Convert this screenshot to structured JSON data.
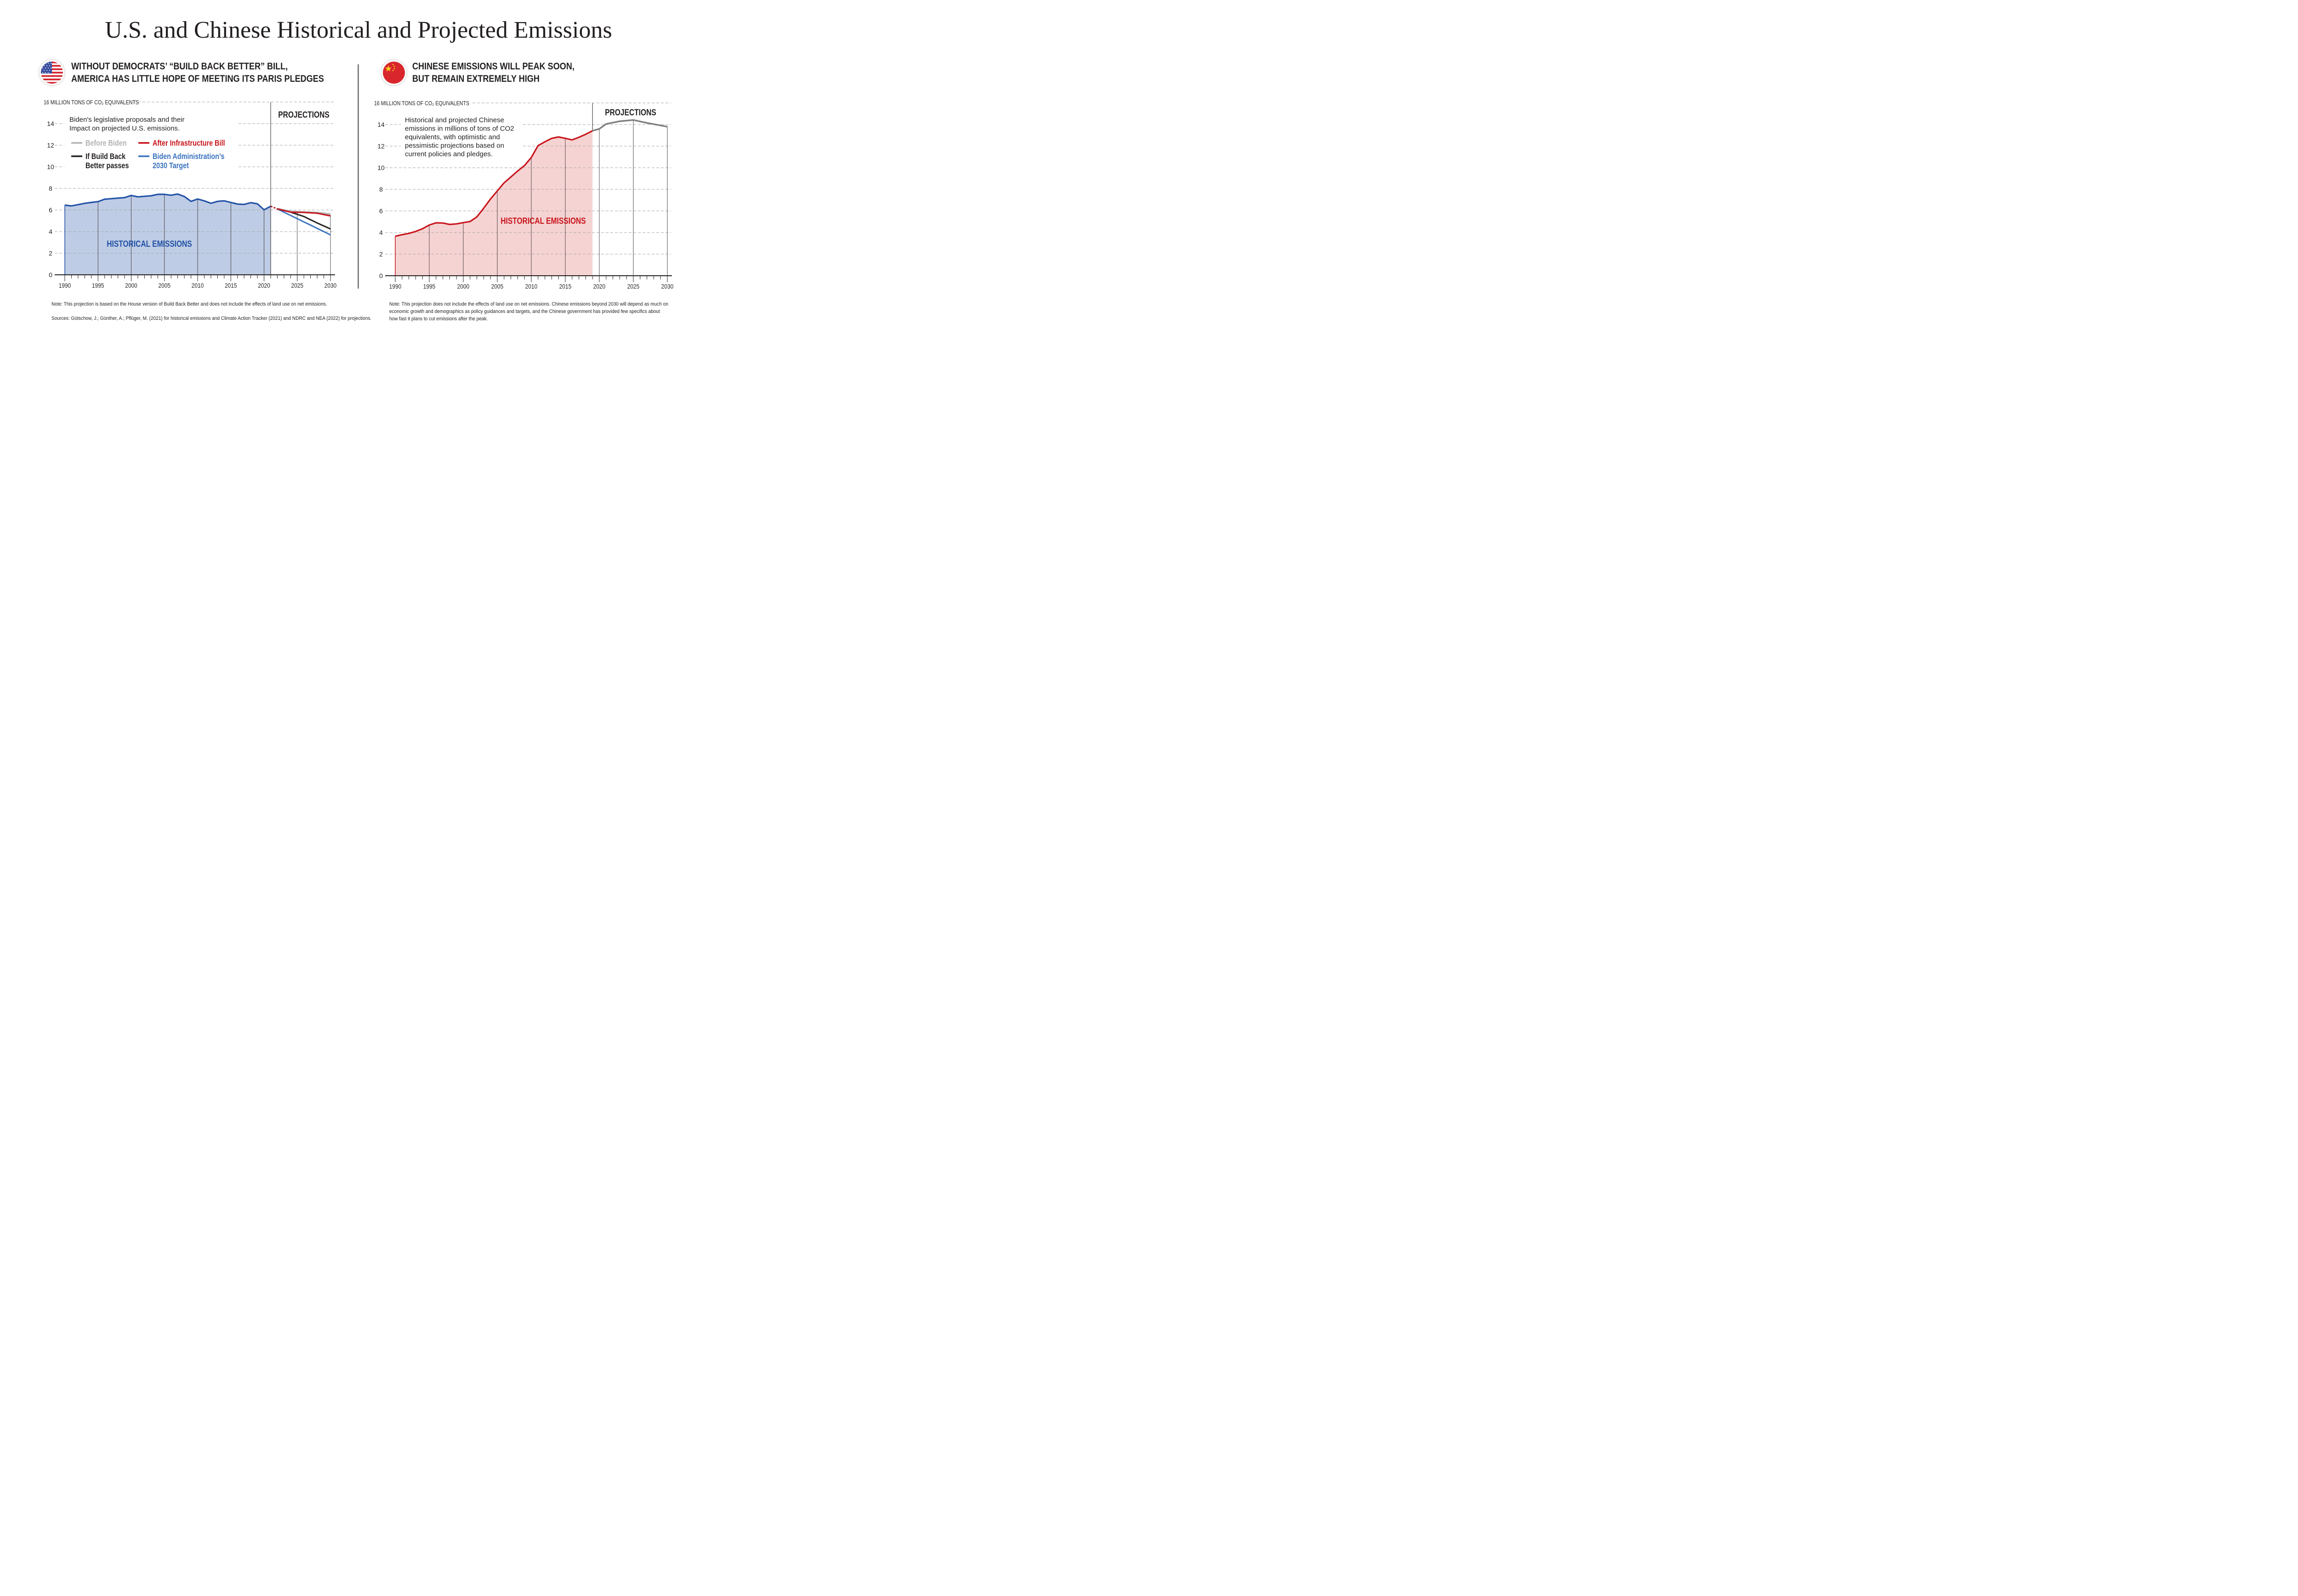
{
  "title": "U.S. and Chinese Historical and Projected Emissions",
  "colors": {
    "us_hist_line": "#2151a5",
    "us_hist_fill": "#bfcce5",
    "before_biden": "#b3b3b3",
    "after_infrastructure": "#c8141b",
    "build_back_better": "#231f20",
    "biden_target": "#3a73c0",
    "cn_hist_line": "#c8141b",
    "cn_hist_fill": "#f6d3d3",
    "cn_projection": "#808080",
    "grid": "#a6a6a6"
  },
  "us_panel": {
    "flag_icon": "us-flag-icon",
    "heading_line1": "WITHOUT DEMOCRATS’ “BUILD BACK BETTER” BILL,",
    "heading_line2": "AMERICA HAS LITTLE HOPE OF MEETING ITS PARIS PLEDGES",
    "description_line1": "Biden's legislative proposals and their",
    "description_line2": "Impact on projected U.S. emissions.",
    "note": "Note: This projection is based on the House version of Build Back Better and does not include the effects of land use on net emissions.",
    "sources": "Sources: Gütschow, J.; Günther, A.; Pflüger, M. (2021) for historical emissions and Climate Action Tracker (2021) and NDRC and NEA (2022) for projections."
  },
  "cn_panel": {
    "flag_icon": "china-flag-icon",
    "heading_line1": "CHINESE EMISSIONS WILL PEAK SOON,",
    "heading_line2": "BUT REMAIN EXTREMELY HIGH",
    "description_lines": [
      "Historical and projected Chinese",
      "emissions in millions of tons of CO2",
      "equivalents, with optimistic and",
      "pessimistic projections based on",
      "current policies and pledges."
    ],
    "note_lines": [
      "Note: This projection does not include the effects of land use on net emissions. Chinese emissions beyond 2030 will depend as much on",
      "economic growth and demographics as policy guidances and targets, and the Chinese government has provided few specifics about",
      "how fast it plans to cut emissions after the peak."
    ]
  },
  "chart_data": [
    {
      "type": "line",
      "ylabel": "16 MILLION TONS OF CO₂ EQUIVALENTS",
      "ylim": [
        0,
        16
      ],
      "yticks": [
        0,
        2,
        4,
        6,
        8,
        10,
        12,
        14,
        16
      ],
      "xlim": [
        1990,
        2030
      ],
      "xticks": [
        1990,
        1995,
        2000,
        2005,
        2010,
        2015,
        2020,
        2025,
        2030
      ],
      "grid": "horizontal dashed",
      "legend": "top-left",
      "area_label": "HISTORICAL EMISSIONS",
      "projection_label": "PROJECTIONS",
      "projection_start": 2021,
      "series": [
        {
          "name": "Historical",
          "x": [
            1990,
            1991,
            1992,
            1993,
            1994,
            1995,
            1996,
            1997,
            1998,
            1999,
            2000,
            2001,
            2002,
            2003,
            2004,
            2005,
            2006,
            2007,
            2008,
            2009,
            2010,
            2011,
            2012,
            2013,
            2014,
            2015,
            2016,
            2017,
            2018,
            2019,
            2020,
            2021
          ],
          "y": [
            6.45,
            6.38,
            6.5,
            6.62,
            6.7,
            6.78,
            7.0,
            7.05,
            7.1,
            7.15,
            7.35,
            7.22,
            7.27,
            7.32,
            7.45,
            7.45,
            7.37,
            7.48,
            7.25,
            6.8,
            7.02,
            6.85,
            6.62,
            6.8,
            6.85,
            6.7,
            6.55,
            6.52,
            6.68,
            6.58,
            6.02,
            6.35
          ]
        },
        {
          "name": "Before Biden",
          "x": [
            2021,
            2022,
            2024,
            2026,
            2028,
            2030
          ],
          "y": [
            6.35,
            6.1,
            5.85,
            5.8,
            5.75,
            5.6
          ]
        },
        {
          "name": "After Infrastructure Bill",
          "x": [
            2021,
            2022,
            2024,
            2026,
            2028,
            2030
          ],
          "y": [
            6.35,
            6.1,
            5.8,
            5.78,
            5.7,
            5.45
          ]
        },
        {
          "name": "If Build Back Better passes",
          "x": [
            2021,
            2022,
            2024,
            2026,
            2028,
            2030
          ],
          "y": [
            6.35,
            6.1,
            5.8,
            5.4,
            4.8,
            4.25
          ]
        },
        {
          "name": "Biden Administration’s 2030 Target",
          "x": [
            2021,
            2022,
            2024,
            2026,
            2028,
            2030
          ],
          "y": [
            6.35,
            6.1,
            5.5,
            4.9,
            4.3,
            3.7
          ]
        }
      ],
      "legend_entries": [
        {
          "lines": [
            "Before Biden"
          ],
          "color_key": "before_biden"
        },
        {
          "lines": [
            "After Infrastructure Bill"
          ],
          "color_key": "after_infrastructure"
        },
        {
          "lines": [
            "If Build Back",
            "Better passes"
          ],
          "color_key": "build_back_better"
        },
        {
          "lines": [
            "Biden Administration’s",
            "2030 Target"
          ],
          "color_key": "biden_target"
        }
      ]
    },
    {
      "type": "area",
      "ylabel": "16 MILLION TONS OF CO₂ EQUIVALENTS",
      "ylim": [
        0,
        16
      ],
      "yticks": [
        0,
        2,
        4,
        6,
        8,
        10,
        12,
        14,
        16
      ],
      "xlim": [
        1990,
        2030
      ],
      "xticks": [
        1990,
        1995,
        2000,
        2005,
        2010,
        2015,
        2020,
        2025,
        2030
      ],
      "grid": "horizontal dashed",
      "area_label": "HISTORICAL EMISSIONS",
      "projection_label": "PROJECTIONS",
      "projection_start": 2019,
      "series": [
        {
          "name": "Historical",
          "x": [
            1990,
            1991,
            1992,
            1993,
            1994,
            1995,
            1996,
            1997,
            1998,
            1999,
            2000,
            2001,
            2002,
            2003,
            2004,
            2005,
            2006,
            2007,
            2008,
            2009,
            2010,
            2011,
            2012,
            2013,
            2014,
            2015,
            2016,
            2017,
            2018,
            2019
          ],
          "y": [
            3.65,
            3.8,
            3.92,
            4.1,
            4.35,
            4.7,
            4.9,
            4.88,
            4.75,
            4.8,
            4.92,
            5.02,
            5.45,
            6.25,
            7.1,
            7.85,
            8.6,
            9.15,
            9.7,
            10.2,
            10.95,
            12.05,
            12.4,
            12.72,
            12.85,
            12.72,
            12.58,
            12.82,
            13.1,
            13.42
          ]
        },
        {
          "name": "Projection",
          "x": [
            2019,
            2020,
            2021,
            2023,
            2025,
            2027,
            2030
          ],
          "y": [
            13.42,
            13.6,
            14.05,
            14.3,
            14.42,
            14.15,
            13.8
          ]
        }
      ]
    }
  ]
}
